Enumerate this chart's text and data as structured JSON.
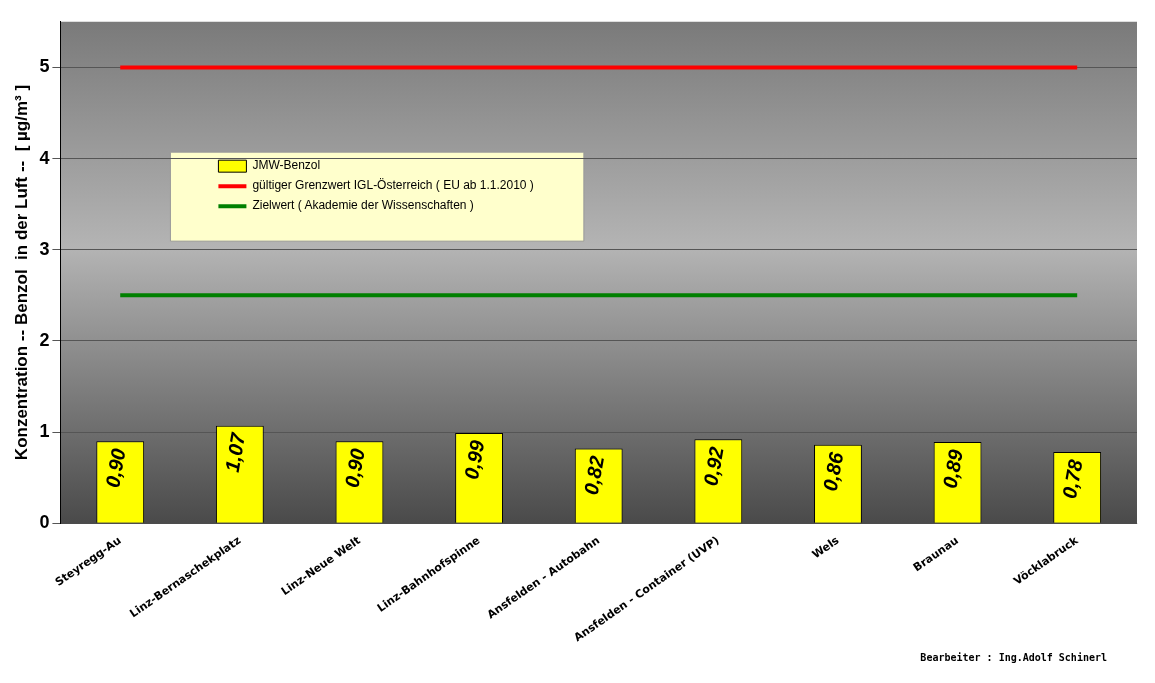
{
  "chart_data": {
    "type": "bar",
    "ylabel": "Konzentration -- Benzol  in der Luft --  [ µg/m³ ]",
    "categories": [
      "Steyregg-Au",
      "Linz-Bernaschekplatz",
      "Linz-Neue Welt",
      "Linz-Bahnhofspinne",
      "Ansfelden - Autobahn",
      "Ansfelden - Container (UVP)",
      "Wels",
      "Braunau",
      "Vöcklabruck"
    ],
    "series": [
      {
        "name": "JMW-Benzol",
        "color": "#ffff00",
        "values": [
          0.9,
          1.07,
          0.9,
          0.99,
          0.82,
          0.92,
          0.86,
          0.89,
          0.78
        ],
        "value_labels": [
          "0,90",
          "1,07",
          "0,90",
          "0,99",
          "0,82",
          "0,92",
          "0,86",
          "0,89",
          "0,78"
        ]
      },
      {
        "name": "gültiger Grenzwert IGL-Österreich ( EU ab 1.1.2010 )",
        "type": "line",
        "color": "#ff0000",
        "values": [
          5,
          5,
          5,
          5,
          5,
          5,
          5,
          5,
          5
        ]
      },
      {
        "name": "Zielwert ( Akademie der Wissenschaften )",
        "type": "line",
        "color": "#008000",
        "values": [
          2.5,
          2.5,
          2.5,
          2.5,
          2.5,
          2.5,
          2.5,
          2.5,
          2.5
        ]
      }
    ],
    "ylim": [
      0,
      5.5
    ],
    "yticks": [
      0,
      1,
      2,
      3,
      4,
      5
    ],
    "grid": "y",
    "legend": "top left",
    "marker": "none",
    "annotations": [
      "Bearbeiter : Ing.Adolf Schinerl"
    ]
  }
}
